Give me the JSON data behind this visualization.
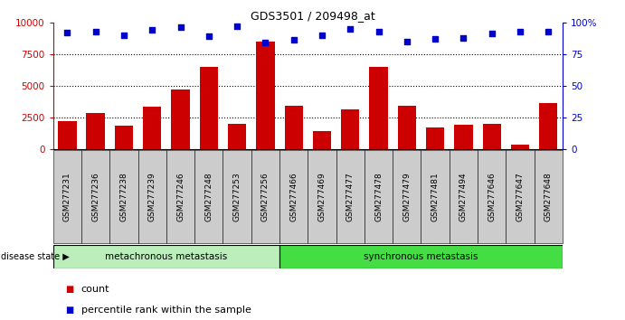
{
  "title": "GDS3501 / 209498_at",
  "samples": [
    "GSM277231",
    "GSM277236",
    "GSM277238",
    "GSM277239",
    "GSM277246",
    "GSM277248",
    "GSM277253",
    "GSM277256",
    "GSM277466",
    "GSM277469",
    "GSM277477",
    "GSM277478",
    "GSM277479",
    "GSM277481",
    "GSM277494",
    "GSM277646",
    "GSM277647",
    "GSM277648"
  ],
  "counts": [
    2200,
    2800,
    1800,
    3300,
    4700,
    6500,
    2000,
    8500,
    3400,
    1400,
    3100,
    6500,
    3400,
    1700,
    1900,
    2000,
    300,
    3600
  ],
  "percentiles": [
    92,
    93,
    90,
    94,
    96,
    89,
    97,
    84,
    86,
    90,
    95,
    93,
    85,
    87,
    88,
    91,
    93,
    93
  ],
  "group1_label": "metachronous metastasis",
  "group2_label": "synchronous metastasis",
  "group1_count": 8,
  "group2_count": 10,
  "bar_color": "#cc0000",
  "dot_color": "#0000cc",
  "group1_bg": "#bbeebb",
  "group2_bg": "#44dd44",
  "tick_bg": "#cccccc",
  "ylim_left": [
    0,
    10000
  ],
  "ylim_right": [
    0,
    100
  ],
  "yticks_left": [
    0,
    2500,
    5000,
    7500,
    10000
  ],
  "ytick_labels_left": [
    "0",
    "2500",
    "5000",
    "7500",
    "10000"
  ],
  "yticks_right": [
    0,
    25,
    50,
    75,
    100
  ],
  "ytick_labels_right": [
    "0",
    "25",
    "50",
    "75",
    "100%"
  ],
  "legend_count": "count",
  "legend_percentile": "percentile rank within the sample",
  "disease_state_label": "disease state",
  "bg_color": "#ffffff",
  "title_fontsize": 9,
  "bar_fontsize": 7.5,
  "label_fontsize": 7.5,
  "tick_fontsize": 6.5,
  "legend_fontsize": 8,
  "ds_fontsize": 7.5
}
